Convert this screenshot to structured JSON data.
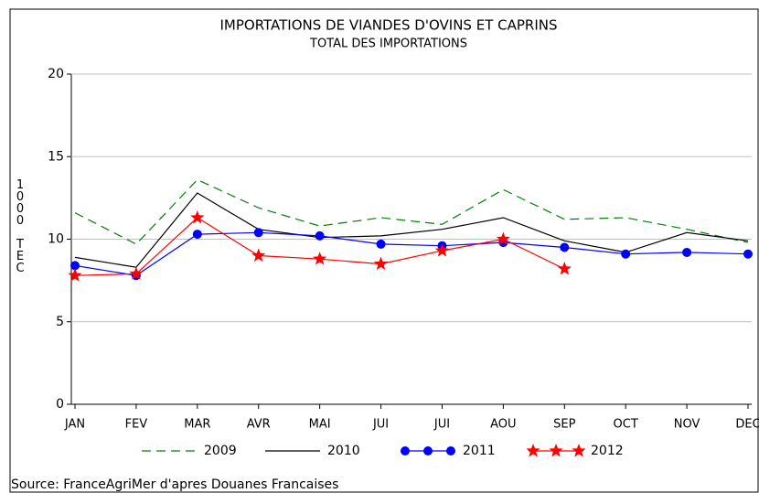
{
  "chart_data": {
    "type": "line",
    "title": "IMPORTATIONS DE VIANDES D'OVINS ET CAPRINS",
    "subtitle": "TOTAL DES IMPORTATIONS",
    "ylabel": "1000 TEC",
    "source": "Source: FranceAgriMer d'apres Douanes Francaises",
    "categories": [
      "JAN",
      "FEV",
      "MAR",
      "AVR",
      "MAI",
      "JUI",
      "JUI",
      "AOU",
      "SEP",
      "OCT",
      "NOV",
      "DEC"
    ],
    "ylim": [
      0,
      20
    ],
    "yticks": [
      0,
      5,
      10,
      15,
      20
    ],
    "grid": true,
    "legend": "bottom",
    "series": [
      {
        "name": "2009",
        "color": "#008000",
        "style": "dashed",
        "values": [
          11.6,
          9.7,
          13.6,
          11.9,
          10.8,
          11.3,
          10.9,
          13.0,
          11.2,
          11.3,
          10.6,
          9.8
        ]
      },
      {
        "name": "2010",
        "color": "#000000",
        "style": "solid",
        "values": [
          8.9,
          8.3,
          12.8,
          10.6,
          10.1,
          10.2,
          10.6,
          11.3,
          9.9,
          9.2,
          10.4,
          9.9
        ]
      },
      {
        "name": "2011",
        "color": "#0000ff",
        "style": "solid",
        "marker": "circle",
        "values": [
          8.4,
          7.8,
          10.3,
          10.4,
          10.2,
          9.7,
          9.6,
          9.8,
          9.5,
          9.1,
          9.2,
          9.1
        ]
      },
      {
        "name": "2012",
        "color": "#ff0000",
        "style": "solid",
        "marker": "star",
        "values": [
          7.8,
          7.9,
          11.3,
          9.0,
          8.8,
          8.5,
          9.3,
          10.0,
          8.2,
          null,
          null,
          null
        ]
      }
    ]
  }
}
